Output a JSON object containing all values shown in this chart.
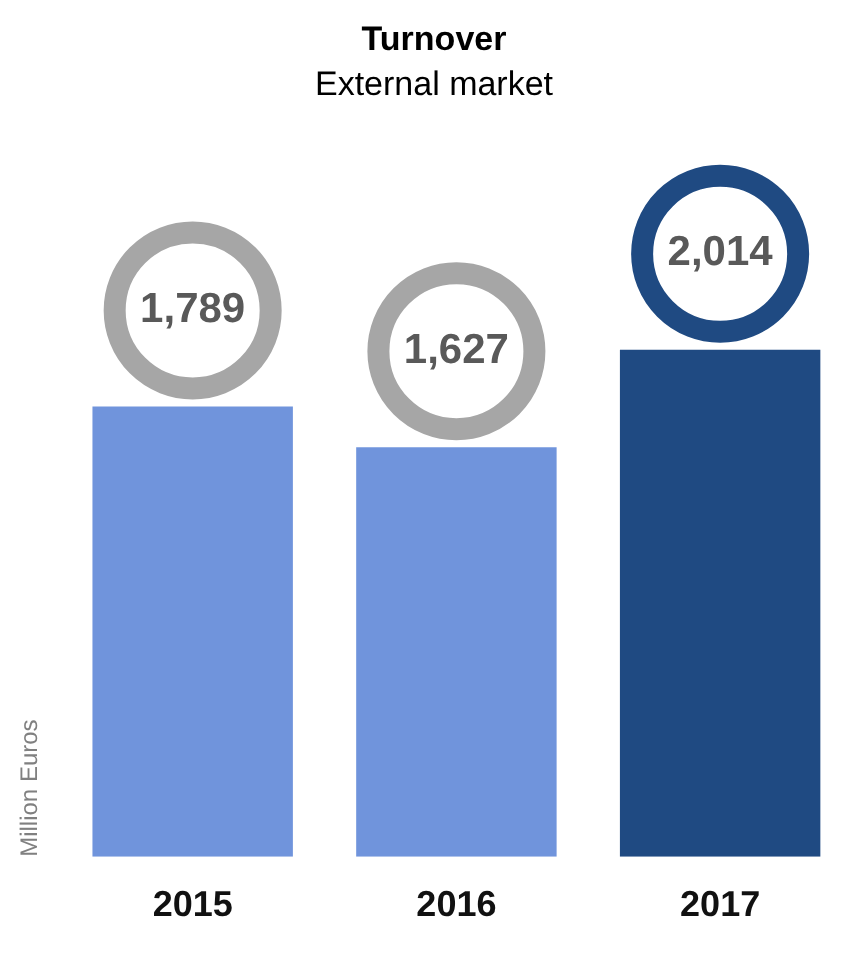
{
  "chart_data": {
    "type": "bar",
    "title": "Turnover",
    "subtitle": "External market",
    "ylabel": "Million Euros",
    "categories": [
      "2015",
      "2016",
      "2017"
    ],
    "values": [
      1789,
      1627,
      2014
    ],
    "colors": [
      "#7094dc",
      "#7094dc",
      "#1f4a82"
    ],
    "value_labels": [
      "1,789",
      "1,627",
      "2,014"
    ],
    "grid": false,
    "legend": false
  }
}
